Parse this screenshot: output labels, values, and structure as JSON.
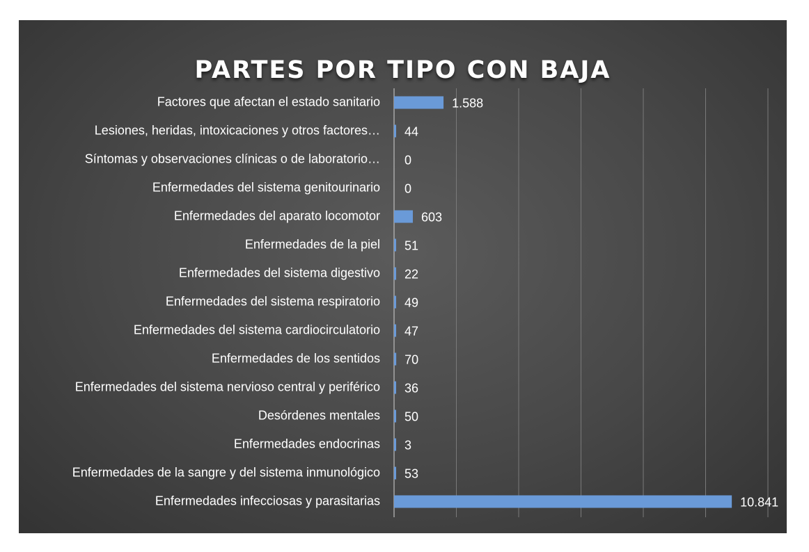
{
  "chart_data": {
    "type": "bar",
    "orientation": "horizontal",
    "title": "PARTES POR TIPO CON BAJA",
    "xlabel": "",
    "ylabel": "",
    "xlim": [
      0,
      12000
    ],
    "grid": "vertical",
    "legend": "none",
    "categories": [
      "Factores que afectan el estado sanitario",
      "Lesiones, heridas, intoxicaciones y otros factores…",
      "Síntomas y observaciones clínicas o de laboratorio…",
      "Enfermedades del sistema genitourinario",
      "Enfermedades del aparato locomotor",
      "Enfermedades de la piel",
      "Enfermedades del sistema digestivo",
      "Enfermedades del sistema respiratorio",
      "Enfermedades del sistema cardiocirculatorio",
      "Enfermedades de los sentidos",
      "Enfermedades del sistema nervioso central y periférico",
      "Desórdenes mentales",
      "Enfermedades endocrinas",
      "Enfermedades de la sangre y del sistema inmunológico",
      "Enfermedades infecciosas y parasitarias"
    ],
    "values": [
      1588,
      44,
      0,
      0,
      603,
      51,
      22,
      49,
      47,
      70,
      36,
      50,
      3,
      53,
      10841
    ],
    "value_labels": [
      "1.588",
      "44",
      "0",
      "0",
      "603",
      "51",
      "22",
      "49",
      "47",
      "70",
      "36",
      "50",
      "3",
      "53",
      "10.841"
    ],
    "colors": {
      "bar": "#6a9ad8",
      "text": "#ffffff",
      "grid": "#7a7a7a"
    }
  }
}
